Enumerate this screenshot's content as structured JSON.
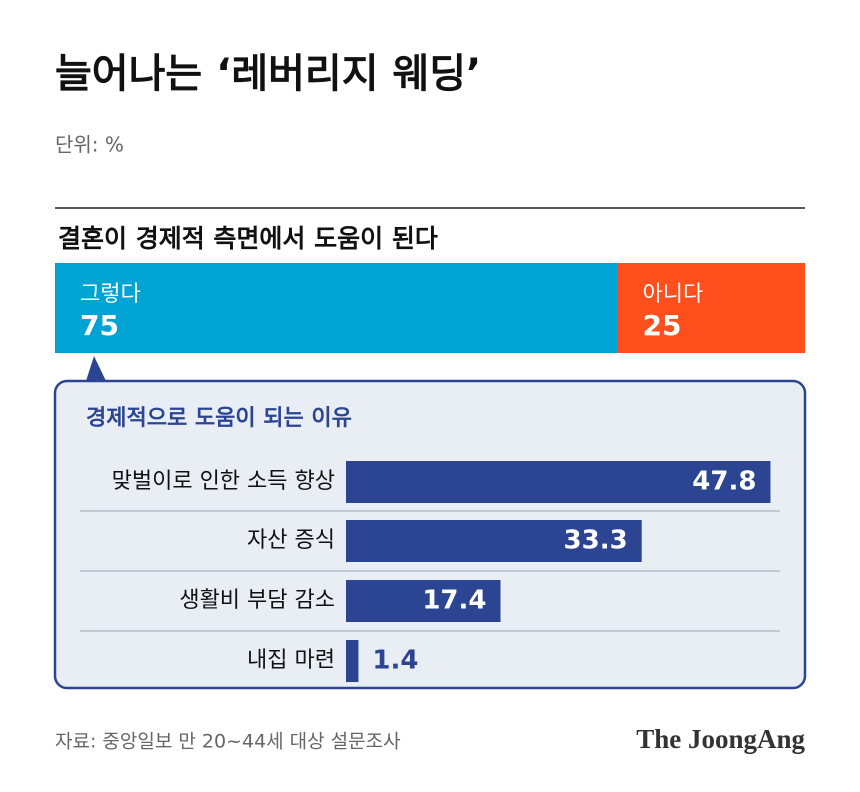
{
  "title": "늘어나는 ‘레버리지 웨딩’",
  "unit": "단위: %",
  "source": "자료: 중앙일보 만 20~44세 대상 설문조사",
  "brand": "The JoongAng",
  "chart_data": [
    {
      "type": "stacked-bar",
      "title": "결혼이 경제적 측면에서 도움이 된다",
      "series": [
        {
          "name": "그렇다",
          "color": "#00a4d4",
          "values": [
            75
          ]
        },
        {
          "name": "아니다",
          "color": "#ff4f1c",
          "values": [
            25
          ]
        }
      ]
    },
    {
      "type": "bar",
      "title": "경제적으로 도움이 되는 이유",
      "categories": [
        "맞벌이로 인한 소득 향상",
        "자산 증식",
        "생활비 부담 감소",
        "내집 마련"
      ],
      "values": [
        47.8,
        33.3,
        17.4,
        1.4
      ],
      "color": "#2b4592",
      "xlim": [
        0,
        50
      ]
    }
  ]
}
